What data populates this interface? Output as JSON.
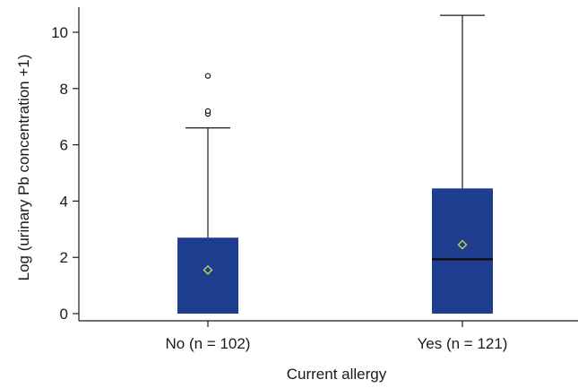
{
  "chart_data": {
    "type": "boxplot",
    "xlabel": "Current allergy",
    "ylabel": "Log (urinary Pb concentration +1)",
    "ylim": [
      -0.3,
      10.9
    ],
    "yticks": [
      0,
      2,
      4,
      6,
      8,
      10
    ],
    "grid": false,
    "box_color": "#1f3d8f",
    "mean_marker_color": "#c8e04a",
    "categories": [
      "No (n = 102)",
      "Yes (n = 121)"
    ],
    "boxes": [
      {
        "label": "No (n = 102)",
        "min": 0,
        "q1": 0,
        "median": 0,
        "q3": 2.7,
        "max": 6.6,
        "mean": 1.55,
        "outliers": [
          7.1,
          7.2,
          8.45
        ]
      },
      {
        "label": "Yes (n = 121)",
        "min": 0,
        "q1": 0,
        "median": 1.93,
        "q3": 4.45,
        "max": 10.6,
        "mean": 2.45,
        "outliers": []
      }
    ]
  }
}
